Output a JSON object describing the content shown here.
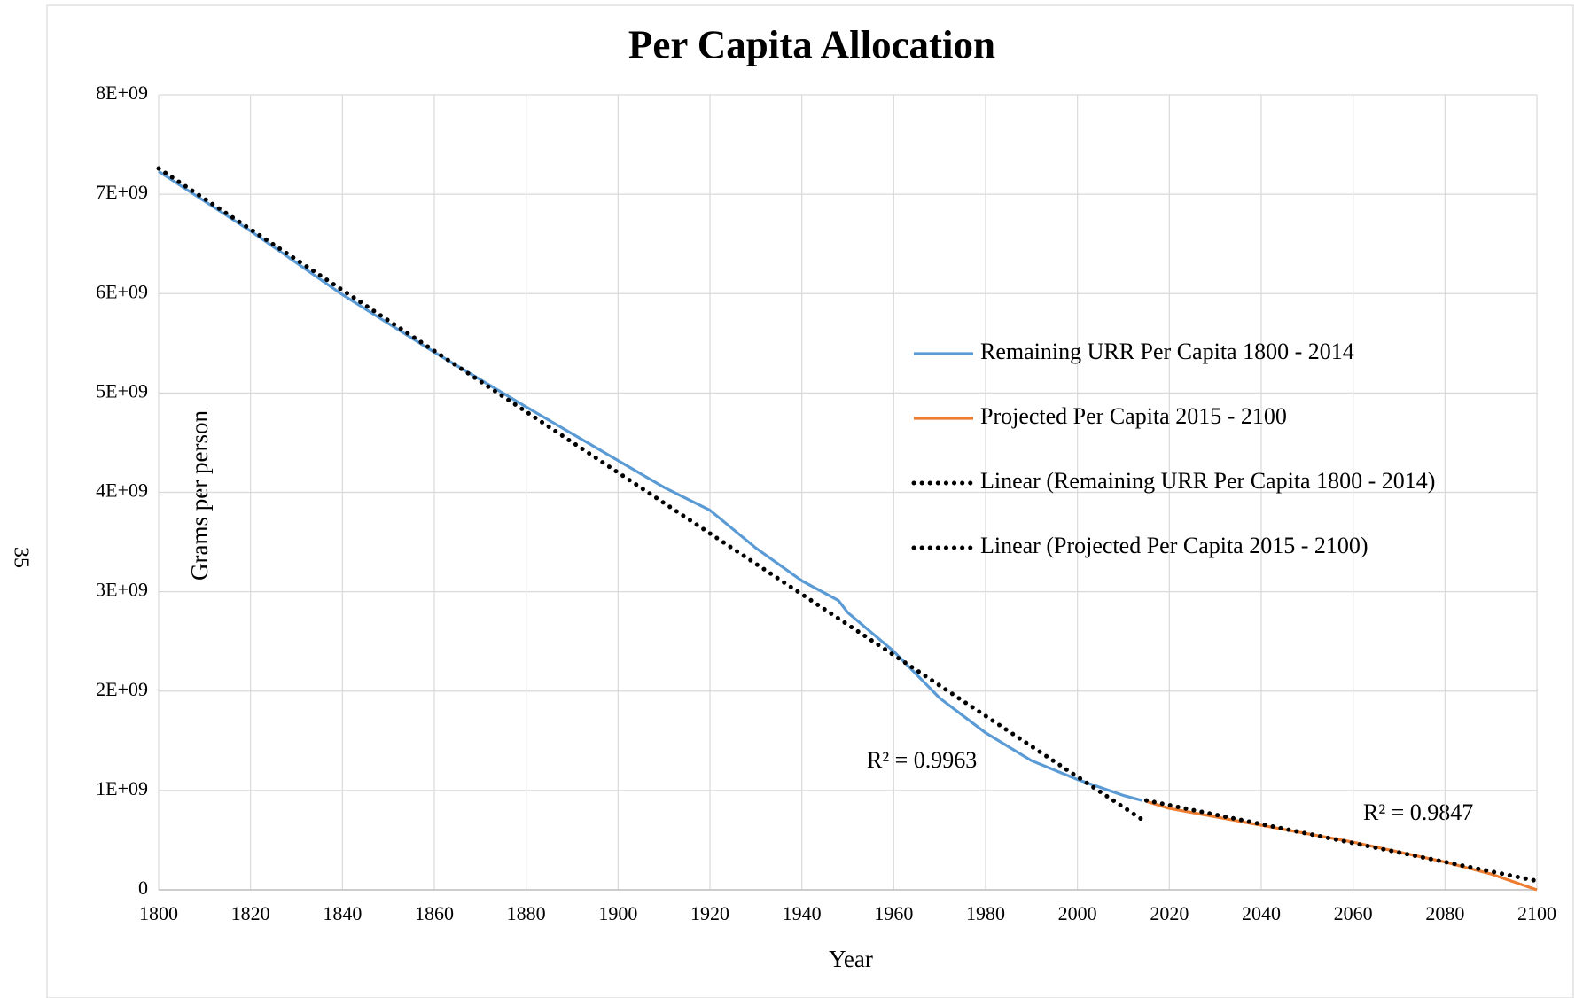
{
  "page_number": "35",
  "chart_data": {
    "type": "line",
    "title": "Per Capita Allocation",
    "x_label": "Year",
    "y_label": "Grams per person",
    "xlim": [
      1800,
      2100
    ],
    "xticks": [
      1800,
      1820,
      1840,
      1860,
      1880,
      1900,
      1920,
      1940,
      1960,
      1980,
      2000,
      2020,
      2040,
      2060,
      2080,
      2100
    ],
    "ylim": [
      0,
      8000000000
    ],
    "yticks": [
      0,
      {
        "value": 1000000000,
        "label": "1E+09"
      },
      {
        "value": 2000000000,
        "label": "2E+09"
      },
      {
        "value": 3000000000,
        "label": "3E+09"
      },
      {
        "value": 4000000000,
        "label": "4E+09"
      },
      {
        "value": 5000000000,
        "label": "5E+09"
      },
      {
        "value": 6000000000,
        "label": "6E+09"
      },
      {
        "value": 7000000000,
        "label": "7E+09"
      },
      {
        "value": 8000000000,
        "label": "8E+09"
      }
    ],
    "grid": true,
    "legend": "right",
    "series": [
      {
        "name": "Remaining URR Per Capita 1800 - 2014",
        "color": "#5b9bd5",
        "style": "solid",
        "x": [
          1800,
          1820,
          1840,
          1860,
          1880,
          1900,
          1910,
          1920,
          1930,
          1940,
          1948,
          1950,
          1960,
          1970,
          1980,
          1990,
          2000,
          2010,
          2014
        ],
        "values": [
          7230000000,
          6630000000,
          5990000000,
          5410000000,
          4860000000,
          4320000000,
          4050000000,
          3820000000,
          3440000000,
          3110000000,
          2910000000,
          2790000000,
          2400000000,
          1930000000,
          1580000000,
          1300000000,
          1110000000,
          950000000,
          900000000
        ]
      },
      {
        "name": "Projected Per Capita 2015 - 2100",
        "color": "#ed7d31",
        "style": "solid",
        "x": [
          2015,
          2020,
          2040,
          2060,
          2080,
          2090,
          2100
        ],
        "values": [
          890000000,
          820000000,
          650000000,
          480000000,
          280000000,
          160000000,
          0
        ]
      },
      {
        "name": "Linear (Remaining URR Per Capita 1800 - 2014)",
        "color": "#000000",
        "style": "dotted",
        "x": [
          1800,
          2014
        ],
        "values": [
          7260000000,
          710000000
        ]
      },
      {
        "name": "Linear (Projected Per Capita 2015 - 2100)",
        "color": "#000000",
        "style": "dotted",
        "x": [
          2015,
          2100
        ],
        "values": [
          900000000,
          90000000
        ]
      }
    ],
    "annotations": [
      "R² = 0.9963",
      "R² = 0.9847"
    ]
  }
}
